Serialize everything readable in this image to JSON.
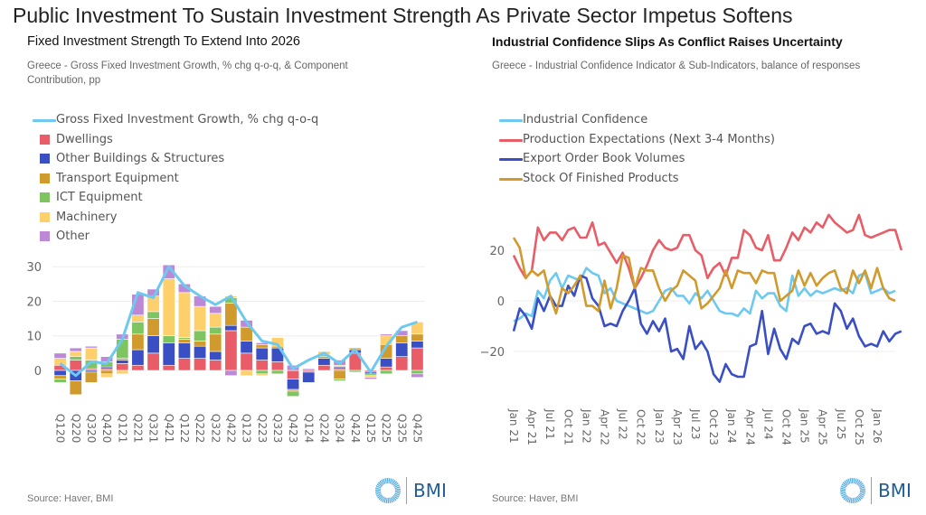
{
  "page": {
    "title": "Public Investment To Sustain Investment Strength As Private Sector Impetus Softens"
  },
  "chart_data": [
    {
      "type": "bar",
      "stacked": true,
      "title": "Fixed Investment Strength To Extend Into 2026",
      "subtitle": "Greece - Gross Fixed Investment Growth, % chg q-o-q, & Component Contribution, pp",
      "source": "Source: Haver, BMI",
      "logo_text": "BMI",
      "xlabel": "",
      "ylabel": "",
      "ylim": [
        -10,
        30
      ],
      "yticks": [
        0,
        10,
        20,
        30
      ],
      "grid": true,
      "legend_position": "top-left",
      "categories": [
        "Q120",
        "Q220",
        "Q320",
        "Q420",
        "Q121",
        "Q221",
        "Q321",
        "Q421",
        "Q122",
        "Q222",
        "Q322",
        "Q422",
        "Q123",
        "Q223",
        "Q323",
        "Q423",
        "Q124",
        "Q224",
        "Q324",
        "Q424",
        "Q125",
        "Q225",
        "Q325",
        "Q425"
      ],
      "series": [
        {
          "name": "Dwellings",
          "color": "#e85d67",
          "values": [
            1.5,
            3,
            0.5,
            0.5,
            2,
            1.5,
            5,
            1.5,
            3.5,
            3.5,
            3,
            11.5,
            5,
            3,
            2.5,
            -2.5,
            -0.5,
            1.5,
            0.5,
            5,
            -0.5,
            1,
            4,
            6.5
          ]
        },
        {
          "name": "Other Buildings & Structures",
          "color": "#3a4fc4",
          "values": [
            -1.5,
            -3,
            -0.5,
            0.5,
            1,
            4.5,
            5,
            6.5,
            4.5,
            3.5,
            2.5,
            1.5,
            3.5,
            3.5,
            4,
            -3,
            -3,
            2,
            0.5,
            1,
            -0.5,
            2.5,
            4,
            2
          ]
        },
        {
          "name": "Transport Equipment",
          "color": "#d09b2c",
          "values": [
            -1,
            -4,
            -3,
            -1,
            0.5,
            4.5,
            5,
            0,
            1,
            1.5,
            5,
            6.5,
            4,
            1,
            0.5,
            -0.5,
            0,
            0.5,
            -2.5,
            0.5,
            0,
            4,
            2,
            2
          ]
        },
        {
          "name": "ICT Equipment",
          "color": "#7ec562",
          "values": [
            -1,
            1,
            2.5,
            1.5,
            5.5,
            3.5,
            2,
            2,
            0.5,
            3,
            2,
            1.5,
            0,
            -1,
            -1,
            -1.5,
            0,
            0.5,
            -0.5,
            -0.5,
            -0.5,
            -1,
            0,
            -1
          ]
        },
        {
          "name": "Machinery",
          "color": "#fdd06b",
          "values": [
            2,
            1.5,
            3.5,
            -1,
            -1,
            2,
            4.5,
            16.5,
            13,
            7,
            4,
            0.5,
            -1.5,
            -0.5,
            2.5,
            0,
            0,
            1,
            0.5,
            0,
            -0.5,
            2.5,
            0,
            3.5
          ]
        },
        {
          "name": "Other",
          "color": "#bd89d6",
          "values": [
            1.5,
            1,
            0.5,
            1.5,
            1.5,
            6,
            2,
            4,
            2.5,
            3,
            2,
            -1.5,
            2,
            0.5,
            0,
            1.5,
            0.5,
            0,
            1.5,
            0,
            -0.5,
            0.5,
            1.5,
            -1
          ]
        }
      ],
      "line_series": {
        "name": "Gross Fixed Investment Growth, % chg q-o-q",
        "color": "#6ec9f0",
        "values": [
          2,
          -1.5,
          2.5,
          2,
          9,
          22.5,
          21,
          30,
          24.5,
          21.5,
          19,
          21.5,
          14,
          8.5,
          7.5,
          0.5,
          3,
          5,
          2,
          6,
          -0.5,
          7,
          12.5,
          14
        ]
      }
    },
    {
      "type": "line",
      "title": "Industrial Confidence Slips As Conflict Raises Uncertainty",
      "subtitle": "Greece - Industrial Confidence Indicator & Sub-Indicators, balance of responses",
      "source": "Source: Haver, BMI",
      "logo_text": "BMI",
      "xlabel": "",
      "ylabel": "",
      "ylim": [
        -35,
        35
      ],
      "yticks": [
        -20,
        0,
        20
      ],
      "grid": true,
      "legend_position": "top-left",
      "x_start": "Jan 21",
      "x_ticks": [
        "Jan 21",
        "Apr 21",
        "Jul 21",
        "Oct 21",
        "Jan 22",
        "Apr 22",
        "Jul 22",
        "Oct 22",
        "Jan 23",
        "Apr 23",
        "Jul 23",
        "Oct 23",
        "Jan 24",
        "Apr 24",
        "Jul 24",
        "Oct 24",
        "Jan 25",
        "Apr 25",
        "Jul 25",
        "Oct 25",
        "Jan 26"
      ],
      "series": [
        {
          "name": "Industrial Confidence",
          "color": "#6ec9f0",
          "values": [
            -8,
            -7,
            -5,
            -6,
            4,
            1,
            8,
            11,
            5,
            10,
            9,
            8,
            13,
            11,
            10,
            3,
            5,
            0,
            -1,
            -2,
            -3,
            -4,
            -5,
            -4,
            0,
            4,
            5,
            2,
            2,
            -1,
            3,
            1,
            4,
            0,
            -4,
            -5,
            -5,
            -6,
            -3,
            -5,
            4,
            1,
            3,
            3,
            -2,
            -4,
            10,
            2,
            5,
            2,
            4,
            3,
            4,
            5,
            4,
            5,
            3,
            10,
            11,
            3,
            4,
            5,
            3,
            4
          ]
        },
        {
          "name": "Production Expectations (Next 3-4 Months)",
          "color": "#e85d67",
          "values": [
            18,
            13,
            9,
            12,
            29,
            24,
            27,
            27,
            24,
            28,
            29,
            25,
            25,
            31,
            22,
            23,
            19,
            15,
            19,
            13,
            5,
            9,
            14,
            20,
            24,
            21,
            20,
            21,
            26,
            26,
            20,
            18,
            9,
            13,
            15,
            10,
            17,
            17,
            28,
            26,
            21,
            20,
            26,
            16,
            16,
            21,
            27,
            24,
            29,
            27,
            31,
            29,
            34,
            31,
            29,
            27,
            28,
            34,
            26,
            25,
            26,
            27,
            28,
            28,
            20
          ]
        },
        {
          "name": "Export Order Book Volumes",
          "color": "#3a4fc4",
          "values": [
            -12,
            -3,
            -6,
            -11,
            1,
            -4,
            2,
            -2,
            -2,
            6,
            2,
            10,
            9,
            1,
            -2,
            -10,
            -9,
            -10,
            -4,
            0,
            5,
            -9,
            -13,
            -8,
            -12,
            -7,
            -20,
            -19,
            -23,
            -10,
            -19,
            -16,
            -20,
            -29,
            -32,
            -25,
            -29,
            -30,
            -30,
            -18,
            -17,
            -4,
            -21,
            -11,
            -19,
            -23,
            -15,
            -17,
            -10,
            -9,
            -13,
            -12,
            -13,
            -1,
            -4,
            -11,
            -7,
            -14,
            -18,
            -17,
            -18,
            -12,
            -16,
            -13,
            -12
          ]
        },
        {
          "name": "Stock Of Finished Products",
          "color": "#d09b2c",
          "values": [
            25,
            21,
            9,
            12,
            10,
            12,
            2,
            -5,
            5,
            3,
            6,
            10,
            -2,
            -2,
            -4,
            8,
            -3,
            5,
            18,
            17,
            5,
            13,
            12,
            12,
            5,
            0,
            4,
            6,
            12,
            10,
            8,
            -3,
            -1,
            2,
            5,
            12,
            5,
            12,
            11,
            11,
            7,
            12,
            11,
            11,
            0,
            2,
            4,
            12,
            6,
            11,
            6,
            9,
            11,
            12,
            5,
            3,
            12,
            7,
            12,
            5,
            13,
            5,
            1,
            0
          ]
        }
      ]
    }
  ]
}
